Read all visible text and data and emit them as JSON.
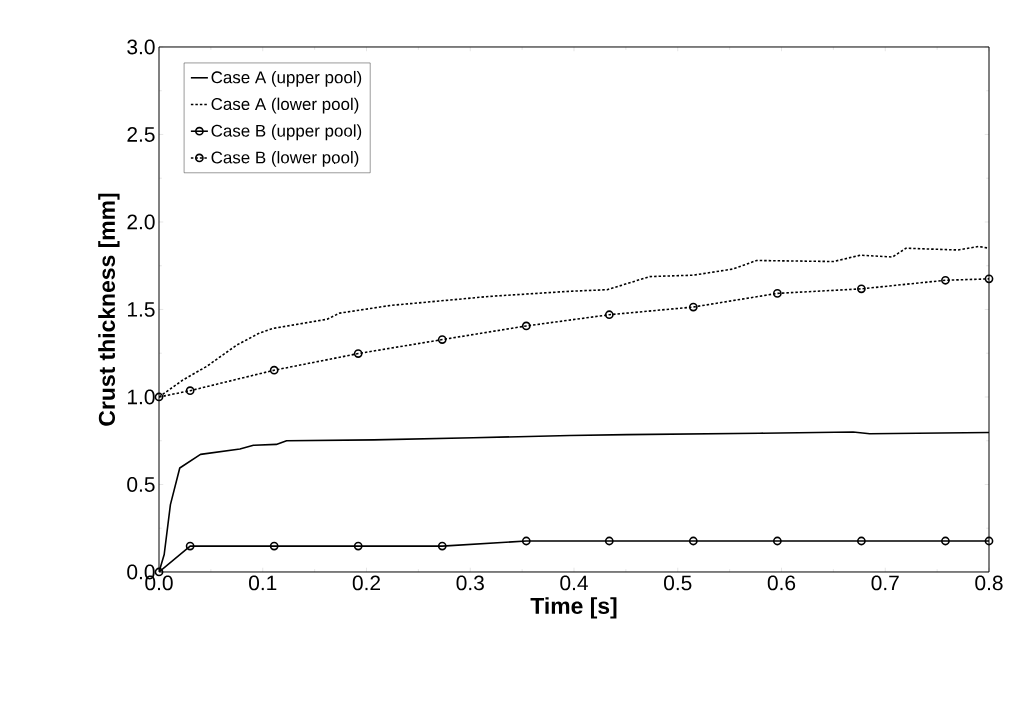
{
  "chart_data": {
    "type": "line",
    "xlabel": "Time [s]",
    "ylabel": "Crust thickness [mm]",
    "xlim": [
      0,
      0.8
    ],
    "ylim": [
      0,
      3.0
    ],
    "xticks": [
      {
        "value": 0,
        "label": "0.0"
      },
      0.1,
      0.2,
      0.3,
      0.4,
      0.5,
      0.6,
      0.7,
      0.8
    ],
    "yticks": [
      {
        "value": 0,
        "label": "0.0"
      },
      0.5,
      {
        "value": 1,
        "label": "1.0"
      },
      1.5,
      {
        "value": 2,
        "label": "2.0"
      },
      2.5,
      {
        "value": 3,
        "label": "3.0"
      }
    ],
    "legend": "top left",
    "grid": false,
    "series": [
      {
        "name": "Case A (upper pool)",
        "color": "#000000",
        "line_style": "solid",
        "marker": "none",
        "x": [
          0,
          0.005,
          0.011,
          0.02,
          0.04,
          0.078,
          0.091,
          0.113,
          0.123,
          0.207,
          0.303,
          0.396,
          0.451,
          0.579,
          0.669,
          0.685,
          0.8
        ],
        "values": [
          0,
          0.1,
          0.385,
          0.594,
          0.672,
          0.703,
          0.724,
          0.729,
          0.75,
          0.755,
          0.767,
          0.78,
          0.785,
          0.793,
          0.8,
          0.79,
          0.797
        ]
      },
      {
        "name": "Case A (lower pool)",
        "color": "#000000",
        "line_style": "dotted",
        "marker": "none",
        "x": [
          0,
          0.023,
          0.046,
          0.075,
          0.097,
          0.11,
          0.162,
          0.174,
          0.223,
          0.271,
          0.319,
          0.396,
          0.432,
          0.473,
          0.515,
          0.553,
          0.576,
          0.65,
          0.676,
          0.707,
          0.72,
          0.77,
          0.79,
          0.8
        ],
        "values": [
          1.0,
          1.097,
          1.175,
          1.297,
          1.366,
          1.392,
          1.444,
          1.479,
          1.523,
          1.549,
          1.575,
          1.604,
          1.613,
          1.688,
          1.696,
          1.731,
          1.78,
          1.774,
          1.81,
          1.8,
          1.85,
          1.84,
          1.86,
          1.85
        ]
      },
      {
        "name": "Case B (upper pool)",
        "color": "#000000",
        "line_style": "solid",
        "marker": "circle",
        "x": [
          0,
          0.03,
          0.111,
          0.192,
          0.273,
          0.354,
          0.434,
          0.515,
          0.596,
          0.677,
          0.758,
          0.8
        ],
        "values": [
          0,
          0.148,
          0.148,
          0.148,
          0.148,
          0.177,
          0.177,
          0.177,
          0.177,
          0.177,
          0.177,
          0.177
        ]
      },
      {
        "name": "Case B (lower pool)",
        "color": "#000000",
        "line_style": "dotted",
        "marker": "circle",
        "x": [
          0,
          0.03,
          0.111,
          0.192,
          0.273,
          0.354,
          0.434,
          0.515,
          0.596,
          0.677,
          0.758,
          0.8
        ],
        "values": [
          1.0,
          1.036,
          1.153,
          1.248,
          1.328,
          1.406,
          1.47,
          1.514,
          1.592,
          1.618,
          1.667,
          1.675
        ]
      }
    ]
  }
}
